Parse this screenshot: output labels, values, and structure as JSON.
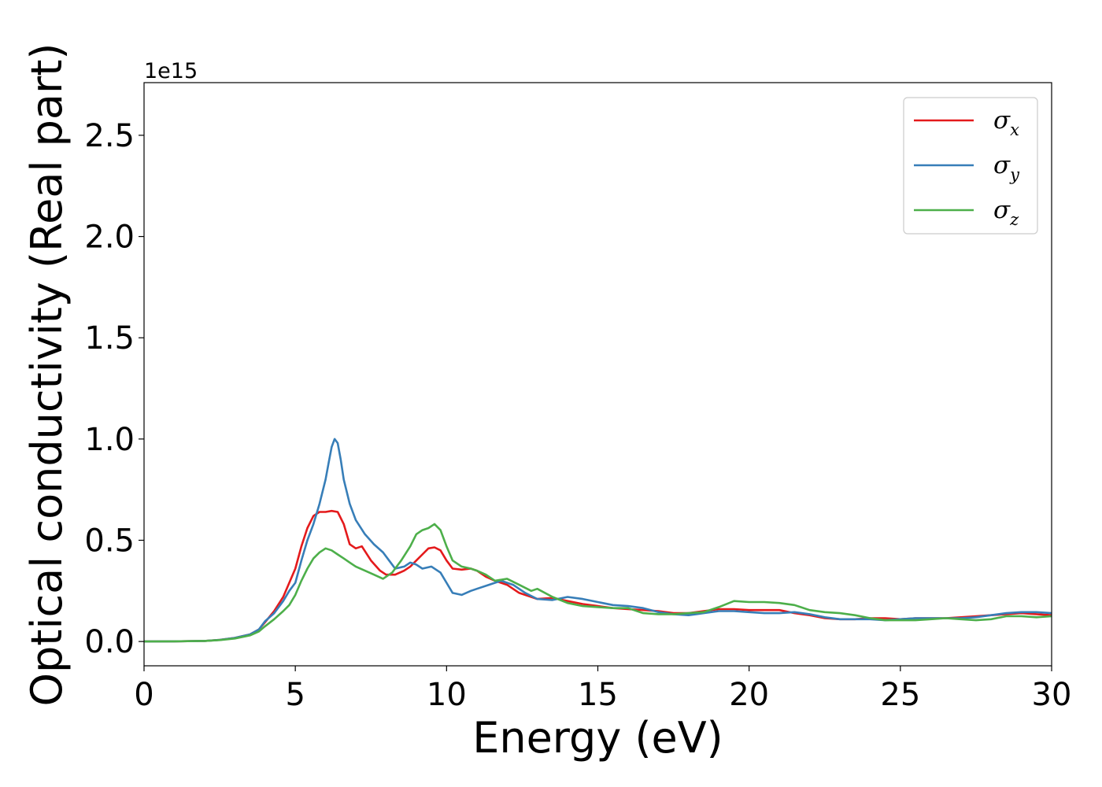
{
  "chart_data": {
    "type": "line",
    "title": "",
    "xlabel": "Energy (eV)",
    "ylabel": "Optical conductivity (Real part)",
    "y_offset_text": "1e15",
    "xlim": [
      0,
      30
    ],
    "ylim": [
      -0.12,
      2.76
    ],
    "x_ticks": [
      0,
      5,
      10,
      15,
      20,
      25,
      30
    ],
    "x_tick_labels": [
      "0",
      "5",
      "10",
      "15",
      "20",
      "25",
      "30"
    ],
    "y_ticks": [
      0.0,
      0.5,
      1.0,
      1.5,
      2.0,
      2.5
    ],
    "y_tick_labels": [
      "0.0",
      "0.5",
      "1.0",
      "1.5",
      "2.0",
      "2.5"
    ],
    "grid": false,
    "legend_position": "top-right",
    "series": [
      {
        "name": "σx",
        "symbol": "σ",
        "subscript": "x",
        "color": "#e41a1c",
        "x": [
          0,
          1,
          2,
          2.5,
          3,
          3.5,
          3.8,
          4,
          4.3,
          4.6,
          4.8,
          5.0,
          5.2,
          5.4,
          5.6,
          5.8,
          6.0,
          6.2,
          6.4,
          6.6,
          6.8,
          7.0,
          7.2,
          7.5,
          7.8,
          8.0,
          8.3,
          8.6,
          8.8,
          9.0,
          9.2,
          9.4,
          9.6,
          9.8,
          10.0,
          10.2,
          10.5,
          10.8,
          11.0,
          11.3,
          11.6,
          12.0,
          12.4,
          12.8,
          13.0,
          13.5,
          14.0,
          14.5,
          15.0,
          15.5,
          16.0,
          16.5,
          17.0,
          17.5,
          18.0,
          18.5,
          19.0,
          19.5,
          20.0,
          20.5,
          21.0,
          21.5,
          22.0,
          22.5,
          23.0,
          23.5,
          24.0,
          24.5,
          25.0,
          25.5,
          26.0,
          26.5,
          27.0,
          27.5,
          28.0,
          28.5,
          29.0,
          29.5,
          30.0
        ],
        "y": [
          0,
          0.001,
          0.003,
          0.008,
          0.018,
          0.035,
          0.06,
          0.095,
          0.15,
          0.22,
          0.29,
          0.36,
          0.47,
          0.56,
          0.62,
          0.64,
          0.64,
          0.645,
          0.64,
          0.58,
          0.48,
          0.46,
          0.47,
          0.4,
          0.35,
          0.33,
          0.33,
          0.35,
          0.37,
          0.4,
          0.43,
          0.46,
          0.465,
          0.45,
          0.4,
          0.36,
          0.355,
          0.36,
          0.35,
          0.32,
          0.3,
          0.28,
          0.24,
          0.22,
          0.21,
          0.215,
          0.2,
          0.185,
          0.175,
          0.165,
          0.16,
          0.155,
          0.15,
          0.14,
          0.14,
          0.15,
          0.16,
          0.16,
          0.155,
          0.155,
          0.155,
          0.14,
          0.13,
          0.115,
          0.11,
          0.11,
          0.115,
          0.115,
          0.11,
          0.115,
          0.115,
          0.115,
          0.12,
          0.125,
          0.13,
          0.135,
          0.14,
          0.135,
          0.13
        ]
      },
      {
        "name": "σy",
        "symbol": "σ",
        "subscript": "y",
        "color": "#377eb8",
        "x": [
          0,
          1,
          2,
          2.5,
          3,
          3.5,
          3.8,
          4,
          4.3,
          4.6,
          4.8,
          5.0,
          5.2,
          5.4,
          5.6,
          5.8,
          6.0,
          6.1,
          6.2,
          6.3,
          6.4,
          6.5,
          6.6,
          6.8,
          7.0,
          7.3,
          7.6,
          7.9,
          8.1,
          8.3,
          8.6,
          8.8,
          9.0,
          9.2,
          9.5,
          9.8,
          10.0,
          10.2,
          10.5,
          10.8,
          11.0,
          11.4,
          11.8,
          12.2,
          12.6,
          13.0,
          13.5,
          14.0,
          14.5,
          15.0,
          15.5,
          16.0,
          16.5,
          17.0,
          17.5,
          18.0,
          18.5,
          19.0,
          19.5,
          20.0,
          20.5,
          21.0,
          21.5,
          22.0,
          22.5,
          23.0,
          23.5,
          24.0,
          24.5,
          25.0,
          25.5,
          26.0,
          26.5,
          27.0,
          27.5,
          28.0,
          28.5,
          29.0,
          29.5,
          30.0
        ],
        "y": [
          0,
          0.001,
          0.003,
          0.008,
          0.018,
          0.035,
          0.06,
          0.1,
          0.14,
          0.2,
          0.25,
          0.29,
          0.4,
          0.5,
          0.58,
          0.68,
          0.8,
          0.88,
          0.96,
          1.0,
          0.98,
          0.9,
          0.8,
          0.68,
          0.6,
          0.53,
          0.48,
          0.44,
          0.4,
          0.36,
          0.37,
          0.39,
          0.38,
          0.36,
          0.37,
          0.34,
          0.29,
          0.24,
          0.23,
          0.25,
          0.26,
          0.28,
          0.3,
          0.28,
          0.24,
          0.21,
          0.205,
          0.22,
          0.21,
          0.195,
          0.18,
          0.175,
          0.165,
          0.145,
          0.135,
          0.13,
          0.14,
          0.15,
          0.15,
          0.145,
          0.14,
          0.14,
          0.145,
          0.135,
          0.12,
          0.11,
          0.11,
          0.11,
          0.105,
          0.11,
          0.115,
          0.115,
          0.115,
          0.115,
          0.12,
          0.13,
          0.14,
          0.145,
          0.145,
          0.14
        ]
      },
      {
        "name": "σz",
        "symbol": "σ",
        "subscript": "z",
        "color": "#4daf4a",
        "x": [
          0,
          1,
          2,
          2.5,
          3,
          3.5,
          3.8,
          4,
          4.3,
          4.6,
          4.8,
          5.0,
          5.2,
          5.4,
          5.6,
          5.8,
          6.0,
          6.2,
          6.4,
          6.6,
          6.8,
          7.0,
          7.3,
          7.6,
          7.9,
          8.2,
          8.5,
          8.8,
          9.0,
          9.2,
          9.4,
          9.6,
          9.8,
          10.0,
          10.2,
          10.5,
          10.8,
          11.0,
          11.3,
          11.6,
          12.0,
          12.4,
          12.8,
          13.0,
          13.5,
          14.0,
          14.5,
          15.0,
          15.5,
          16.0,
          16.5,
          17.0,
          17.5,
          18.0,
          18.5,
          19.0,
          19.5,
          20.0,
          20.5,
          21.0,
          21.5,
          22.0,
          22.5,
          23.0,
          23.5,
          24.0,
          24.5,
          25.0,
          25.5,
          26.0,
          26.5,
          27.0,
          27.5,
          28.0,
          28.5,
          29.0,
          29.5,
          30.0
        ],
        "y": [
          0,
          0.001,
          0.003,
          0.007,
          0.015,
          0.03,
          0.05,
          0.075,
          0.11,
          0.15,
          0.18,
          0.23,
          0.3,
          0.36,
          0.41,
          0.44,
          0.46,
          0.45,
          0.43,
          0.41,
          0.39,
          0.37,
          0.35,
          0.33,
          0.31,
          0.34,
          0.4,
          0.47,
          0.53,
          0.55,
          0.56,
          0.58,
          0.55,
          0.47,
          0.4,
          0.37,
          0.36,
          0.35,
          0.33,
          0.3,
          0.31,
          0.28,
          0.25,
          0.26,
          0.22,
          0.19,
          0.175,
          0.17,
          0.165,
          0.165,
          0.14,
          0.135,
          0.135,
          0.14,
          0.145,
          0.17,
          0.2,
          0.195,
          0.195,
          0.19,
          0.18,
          0.155,
          0.145,
          0.14,
          0.13,
          0.115,
          0.105,
          0.105,
          0.105,
          0.11,
          0.115,
          0.11,
          0.105,
          0.11,
          0.125,
          0.125,
          0.12,
          0.125
        ]
      }
    ]
  }
}
